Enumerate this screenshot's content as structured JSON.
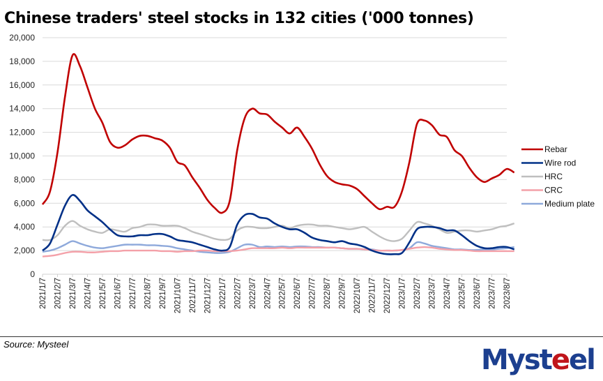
{
  "chart_data": {
    "type": "line",
    "title": "Chinese traders' steel stocks in 132 cities ('000 tonnes)",
    "xlabel": "",
    "ylabel": "",
    "ylim": [
      0,
      20000
    ],
    "yticks": [
      "0",
      "2,000",
      "4,000",
      "6,000",
      "8,000",
      "10,000",
      "12,000",
      "14,000",
      "16,000",
      "18,000",
      "20,000"
    ],
    "ytick_values": [
      0,
      2000,
      4000,
      6000,
      8000,
      10000,
      12000,
      14000,
      16000,
      18000,
      20000
    ],
    "grid": true,
    "legend_position": "right",
    "x_tick_labels": [
      "2021/1/7",
      "2021/2/7",
      "2021/3/7",
      "2021/4/7",
      "2021/5/7",
      "2021/6/7",
      "2021/7/7",
      "2021/8/7",
      "2021/9/7",
      "2021/10/7",
      "2021/11/7",
      "2021/12/7",
      "2022/1/7",
      "2022/2/7",
      "2022/3/7",
      "2022/4/7",
      "2022/5/7",
      "2022/6/7",
      "2022/7/7",
      "2022/8/7",
      "2022/9/7",
      "2022/10/7",
      "2022/11/7",
      "2022/12/7",
      "2023/1/7",
      "2023/2/7",
      "2023/3/7",
      "2023/4/7",
      "2023/5/7",
      "2023/6/7",
      "2023/7/7",
      "2023/8/7"
    ],
    "x_note": "values sampled twice per month; even indices align with tick labels",
    "series": [
      {
        "name": "Rebar",
        "color": "#c00000",
        "values": [
          5900,
          7000,
          10300,
          15000,
          18500,
          17600,
          15800,
          14000,
          12800,
          11200,
          10700,
          10900,
          11400,
          11700,
          11700,
          11500,
          11300,
          10700,
          9500,
          9200,
          8200,
          7300,
          6300,
          5600,
          5200,
          6200,
          10500,
          13200,
          14000,
          13600,
          13500,
          12900,
          12400,
          11900,
          12400,
          11600,
          10600,
          9300,
          8300,
          7800,
          7600,
          7500,
          7200,
          6600,
          6000,
          5500,
          5700,
          5700,
          7000,
          9500,
          12700,
          13000,
          12600,
          11800,
          11600,
          10500,
          10000,
          9000,
          8200,
          7800,
          8100,
          8400,
          8900,
          8600
        ]
      },
      {
        "name": "Wire rod",
        "color": "#003087",
        "values": [
          2000,
          2600,
          4200,
          5800,
          6700,
          6200,
          5400,
          4900,
          4400,
          3800,
          3300,
          3200,
          3200,
          3300,
          3300,
          3400,
          3400,
          3200,
          2900,
          2800,
          2700,
          2500,
          2300,
          2100,
          2000,
          2300,
          4200,
          5000,
          5100,
          4800,
          4700,
          4300,
          4000,
          3800,
          3800,
          3500,
          3100,
          2900,
          2800,
          2700,
          2800,
          2600,
          2500,
          2300,
          2000,
          1800,
          1700,
          1700,
          1800,
          2700,
          3800,
          4000,
          4000,
          3900,
          3700,
          3700,
          3300,
          2800,
          2400,
          2200,
          2200,
          2300,
          2300,
          2100
        ]
      },
      {
        "name": "HRC",
        "color": "#bfbfbf",
        "values": [
          2900,
          2900,
          3300,
          4100,
          4500,
          4100,
          3800,
          3600,
          3500,
          3800,
          3700,
          3600,
          3900,
          4000,
          4200,
          4200,
          4100,
          4100,
          4100,
          3900,
          3600,
          3400,
          3200,
          3000,
          2900,
          3000,
          3700,
          4000,
          4000,
          3900,
          3900,
          4000,
          4100,
          3900,
          4100,
          4200,
          4200,
          4100,
          4100,
          4000,
          3900,
          3800,
          3900,
          4000,
          3600,
          3200,
          2900,
          2800,
          3000,
          3700,
          4400,
          4300,
          4100,
          3800,
          3500,
          3600,
          3700,
          3700,
          3600,
          3700,
          3800,
          4000,
          4100,
          4300
        ]
      },
      {
        "name": "CRC",
        "color": "#f4a0a8",
        "values": [
          1500,
          1550,
          1650,
          1800,
          1900,
          1900,
          1850,
          1850,
          1900,
          1950,
          1950,
          2000,
          2000,
          2000,
          2000,
          2000,
          1950,
          1950,
          1900,
          1950,
          1950,
          2000,
          2000,
          1950,
          1950,
          1950,
          2000,
          2100,
          2200,
          2200,
          2200,
          2200,
          2250,
          2200,
          2250,
          2250,
          2250,
          2250,
          2250,
          2250,
          2200,
          2150,
          2150,
          2100,
          2050,
          2000,
          2000,
          2000,
          2050,
          2150,
          2250,
          2300,
          2250,
          2150,
          2100,
          2050,
          2050,
          2000,
          1950,
          1950,
          1950,
          1950,
          1950,
          1950
        ]
      },
      {
        "name": "Medium plate",
        "color": "#8ea9db",
        "values": [
          1900,
          2000,
          2200,
          2500,
          2800,
          2600,
          2400,
          2250,
          2200,
          2300,
          2400,
          2500,
          2500,
          2500,
          2450,
          2450,
          2400,
          2350,
          2200,
          2100,
          2000,
          1900,
          1850,
          1800,
          1800,
          1900,
          2200,
          2500,
          2500,
          2300,
          2350,
          2300,
          2350,
          2300,
          2350,
          2350,
          2300,
          2300,
          2250,
          2250,
          2200,
          2150,
          2150,
          2100,
          2100,
          2000,
          2000,
          2000,
          2050,
          2200,
          2700,
          2600,
          2400,
          2300,
          2200,
          2100,
          2100,
          2050,
          2050,
          2100,
          2100,
          2150,
          2200,
          2300
        ]
      }
    ]
  },
  "footer": {
    "source": "Source: Mysteel",
    "logo_main": "Myst",
    "logo_accent": "e",
    "logo_tail": "el"
  }
}
